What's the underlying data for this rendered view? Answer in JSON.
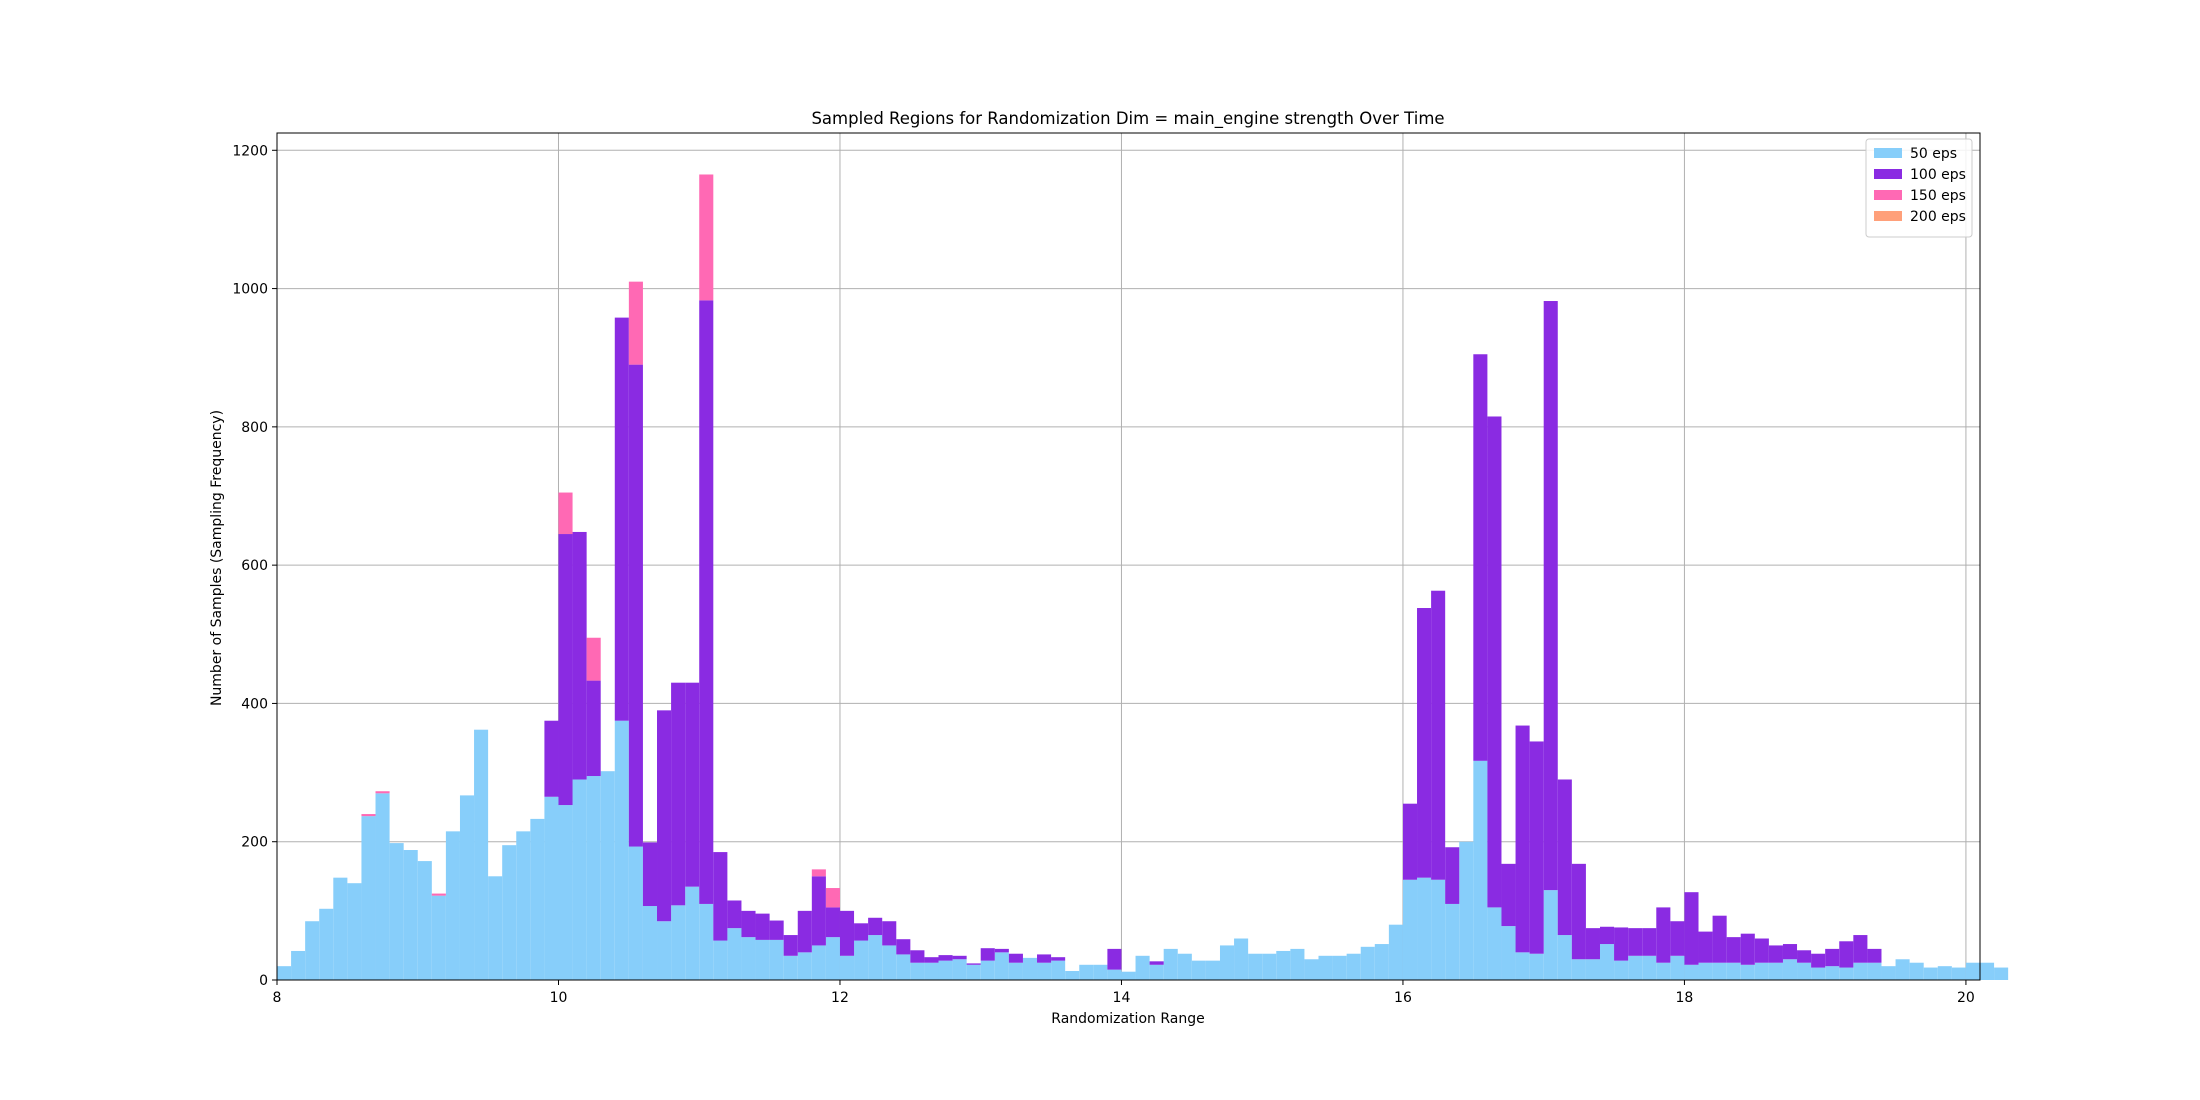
{
  "chart_data": {
    "type": "bar",
    "subtype": "stacked-histogram",
    "title": "Sampled Regions for Randomization Dim = main_engine strength Over Time",
    "xlabel": "Randomization Range",
    "ylabel": "Number of Samples (Sampling Frequency)",
    "xlim": [
      8,
      20.1
    ],
    "ylim": [
      0,
      1225
    ],
    "xticks": [
      8,
      10,
      12,
      14,
      16,
      18,
      20
    ],
    "yticks": [
      0,
      200,
      400,
      600,
      800,
      1000,
      1200
    ],
    "grid": true,
    "legend_position": "top-right",
    "bin_start": 8.0,
    "bin_width": 0.1,
    "series": [
      {
        "name": "50 eps",
        "color": "#87CEFA",
        "values": [
          20,
          42,
          85,
          103,
          148,
          140,
          237,
          270,
          198,
          188,
          172,
          122,
          215,
          267,
          362,
          150,
          195,
          215,
          233,
          265,
          253,
          290,
          295,
          302,
          375,
          193,
          107,
          85,
          108,
          135,
          110,
          57,
          75,
          62,
          58,
          58,
          35,
          40,
          50,
          62,
          35,
          57,
          65,
          50,
          37,
          25,
          25,
          28,
          30,
          22,
          28,
          40,
          25,
          32,
          25,
          28,
          13,
          22,
          22,
          15,
          12,
          35,
          22,
          45,
          38,
          28,
          28,
          50,
          60,
          38,
          38,
          42,
          45,
          30,
          35,
          35,
          38,
          48,
          52,
          80,
          145,
          148,
          145,
          110,
          200,
          317,
          105,
          78,
          40,
          38,
          130,
          65,
          30,
          30,
          52,
          28,
          35,
          35,
          25,
          35,
          22,
          25,
          25,
          25,
          22,
          25,
          25,
          30,
          25,
          18,
          20,
          18,
          25,
          25,
          20,
          30,
          25,
          18,
          20,
          18,
          25,
          25,
          18
        ]
      },
      {
        "name": "100 eps",
        "color": "#8A2BE2",
        "values": [
          0,
          0,
          0,
          0,
          0,
          0,
          0,
          0,
          0,
          0,
          0,
          0,
          0,
          0,
          0,
          0,
          0,
          0,
          0,
          110,
          392,
          358,
          138,
          0,
          583,
          697,
          92,
          305,
          322,
          295,
          873,
          128,
          40,
          38,
          38,
          28,
          30,
          60,
          100,
          43,
          65,
          25,
          25,
          35,
          22,
          18,
          8,
          8,
          5,
          2,
          18,
          5,
          13,
          0,
          12,
          5,
          0,
          0,
          0,
          30,
          0,
          0,
          5,
          0,
          0,
          0,
          0,
          0,
          0,
          0,
          0,
          0,
          0,
          0,
          0,
          0,
          0,
          0,
          0,
          0,
          110,
          390,
          418,
          82,
          0,
          588,
          710,
          90,
          328,
          307,
          852,
          225,
          138,
          45,
          25,
          48,
          40,
          40,
          80,
          50,
          105,
          45,
          68,
          37,
          45,
          35,
          25,
          22,
          18,
          20,
          25,
          38,
          40,
          20,
          0,
          0,
          0,
          0,
          0,
          0,
          0,
          0,
          0
        ]
      },
      {
        "name": "150 eps",
        "color": "#FF69B4",
        "values": [
          0,
          0,
          0,
          0,
          0,
          0,
          3,
          3,
          0,
          0,
          0,
          3,
          0,
          0,
          0,
          0,
          0,
          0,
          0,
          0,
          60,
          0,
          62,
          0,
          0,
          120,
          0,
          0,
          0,
          0,
          182,
          0,
          0,
          0,
          0,
          0,
          0,
          0,
          10,
          28,
          0,
          0,
          0,
          0,
          0,
          0,
          0,
          0,
          0,
          0,
          0,
          0,
          0,
          0,
          0,
          0,
          0,
          0,
          0,
          0,
          0,
          0,
          0,
          0,
          0,
          0,
          0,
          0,
          0,
          0,
          0,
          0,
          0,
          0,
          0,
          0,
          0,
          0,
          0,
          0,
          0,
          0,
          0,
          0,
          0,
          0,
          0,
          0,
          0,
          0,
          0,
          0,
          0,
          0,
          0,
          0,
          0,
          0,
          0,
          0,
          0,
          0,
          0,
          0,
          0,
          0,
          0,
          0,
          0,
          0,
          0,
          0,
          0,
          0,
          0,
          0,
          0,
          0,
          0,
          0,
          0,
          0,
          0
        ]
      },
      {
        "name": "200 eps",
        "color": "#FFA07A",
        "values": []
      }
    ]
  }
}
